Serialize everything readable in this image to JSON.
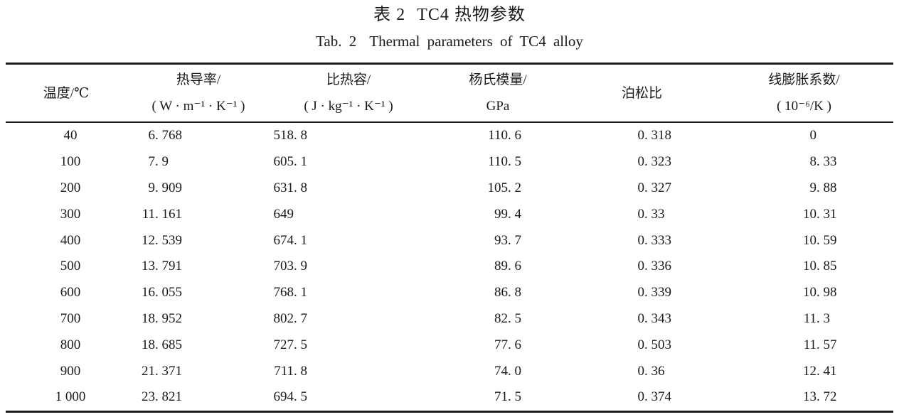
{
  "title": {
    "zh_label": "表 2",
    "zh_text": "TC4 热物参数",
    "en_label": "Tab. 2",
    "en_text": "Thermal parameters of TC4 alloy"
  },
  "table": {
    "columns": [
      {
        "id": "temperature",
        "header_lines": [
          "温度/℃"
        ]
      },
      {
        "id": "thermal-conductivity",
        "header_lines": [
          "热导率/",
          "( W · m⁻¹ · K⁻¹ )"
        ]
      },
      {
        "id": "specific-heat",
        "header_lines": [
          "比热容/",
          "( J · kg⁻¹ · K⁻¹ )"
        ]
      },
      {
        "id": "youngs-modulus",
        "header_lines": [
          "杨氏模量/",
          "GPa"
        ]
      },
      {
        "id": "poissons-ratio",
        "header_lines": [
          "泊松比"
        ]
      },
      {
        "id": "linear-expansion",
        "header_lines": [
          "线膨胀系数/",
          "( 10⁻⁶/K )"
        ]
      }
    ],
    "rows": [
      [
        "40",
        "6. 768",
        "518. 8",
        "110. 6",
        "0. 318",
        "0"
      ],
      [
        "100",
        "7. 9",
        "605. 1",
        "110. 5",
        "0. 323",
        "8. 33"
      ],
      [
        "200",
        "9. 909",
        "631. 8",
        "105. 2",
        "0. 327",
        "9. 88"
      ],
      [
        "300",
        "11. 161",
        "649",
        "99. 4",
        "0. 33",
        "10. 31"
      ],
      [
        "400",
        "12. 539",
        "674. 1",
        "93. 7",
        "0. 333",
        "10. 59"
      ],
      [
        "500",
        "13. 791",
        "703. 9",
        "89. 6",
        "0. 336",
        "10. 85"
      ],
      [
        "600",
        "16. 055",
        "768. 1",
        "86. 8",
        "0. 339",
        "10. 98"
      ],
      [
        "700",
        "18. 952",
        "802. 7",
        "82. 5",
        "0. 343",
        "11. 3"
      ],
      [
        "800",
        "18. 685",
        "727. 5",
        "77. 6",
        "0. 503",
        "11. 57"
      ],
      [
        "900",
        "21. 371",
        "711. 8",
        "74. 0",
        "0. 36",
        "12. 41"
      ],
      [
        "1 000",
        "23. 821",
        "694. 5",
        "71. 5",
        "0. 374",
        "13. 72"
      ]
    ]
  },
  "chart_data": {
    "type": "table",
    "title": "表 2 TC4 热物参数 / Tab. 2 Thermal parameters of TC4 alloy",
    "columns": [
      "温度/℃",
      "热导率/(W·m⁻¹·K⁻¹)",
      "比热容/(J·kg⁻¹·K⁻¹)",
      "杨氏模量/GPa",
      "泊松比",
      "线膨胀系数/(10⁻⁶/K)"
    ],
    "temperature_c": [
      40,
      100,
      200,
      300,
      400,
      500,
      600,
      700,
      800,
      900,
      1000
    ],
    "thermal_conductivity": [
      6.768,
      7.9,
      9.909,
      11.161,
      12.539,
      13.791,
      16.055,
      18.952,
      18.685,
      21.371,
      23.821
    ],
    "specific_heat": [
      518.8,
      605.1,
      631.8,
      649,
      674.1,
      703.9,
      768.1,
      802.7,
      727.5,
      711.8,
      694.5
    ],
    "youngs_modulus_gpa": [
      110.6,
      110.5,
      105.2,
      99.4,
      93.7,
      89.6,
      86.8,
      82.5,
      77.6,
      74.0,
      71.5
    ],
    "poissons_ratio": [
      0.318,
      0.323,
      0.327,
      0.33,
      0.333,
      0.336,
      0.339,
      0.343,
      0.503,
      0.36,
      0.374
    ],
    "linear_expansion_coeff": [
      0,
      8.33,
      9.88,
      10.31,
      10.59,
      10.85,
      10.98,
      11.3,
      11.57,
      12.41,
      13.72
    ]
  }
}
